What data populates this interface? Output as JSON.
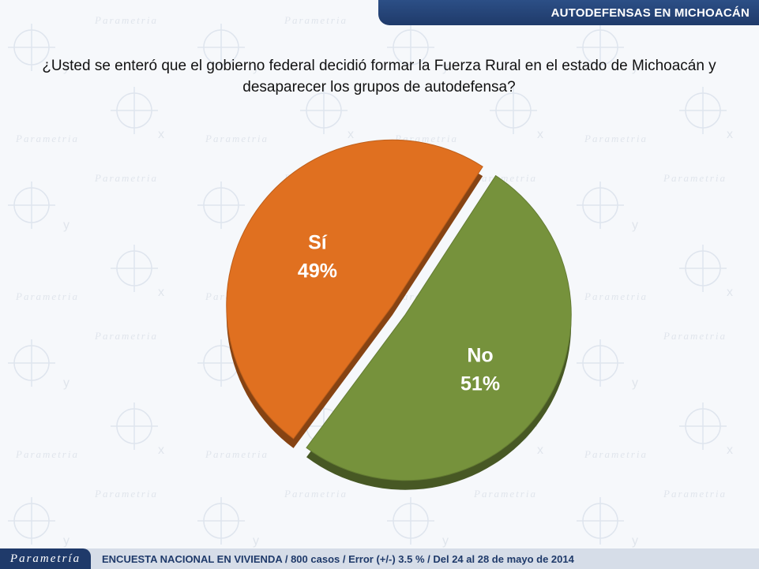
{
  "header": {
    "title": "AUTODEFENSAS EN MICHOACÁN"
  },
  "question": "¿Usted se enteró que el gobierno federal decidió formar la Fuerza Rural en el estado de Michoacán y desaparecer los grupos de autodefensa?",
  "chart_data": {
    "type": "pie",
    "slices": [
      {
        "label": "Sí",
        "value": 49,
        "value_label": "49%",
        "color": "#e07020"
      },
      {
        "label": "No",
        "value": 51,
        "value_label": "51%",
        "color": "#76923c"
      }
    ]
  },
  "footer": {
    "logo": "Parametría",
    "note": "ENCUESTA NACIONAL EN VIVIENDA / 800 casos / Error (+/-) 3.5 % / Del 24 al 28 de mayo de 2014"
  },
  "watermark": "Parametría"
}
